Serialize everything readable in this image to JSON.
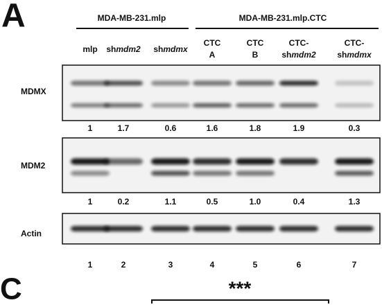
{
  "panel_label": "A",
  "groups": [
    {
      "label": "MDA-MB-231.mlp"
    },
    {
      "label": "MDA-MB-231.mlp.CTC"
    }
  ],
  "lanes": [
    [
      [
        {
          "text": "mlp"
        }
      ]
    ],
    [
      [
        {
          "text": "sh"
        },
        {
          "text": "mdm2",
          "style": "italic"
        }
      ]
    ],
    [
      [
        {
          "text": "sh"
        },
        {
          "text": "mdmx",
          "style": "italic"
        }
      ]
    ],
    [
      [
        {
          "text": "CTC"
        }
      ],
      [
        {
          "text": "A"
        }
      ]
    ],
    [
      [
        {
          "text": "CTC"
        }
      ],
      [
        {
          "text": "B"
        }
      ]
    ],
    [
      [
        {
          "text": "CTC-"
        }
      ],
      [
        {
          "text": "sh"
        },
        {
          "text": "mdm2",
          "style": "italic"
        }
      ]
    ],
    [
      [
        {
          "text": "CTC-"
        }
      ],
      [
        {
          "text": "sh"
        },
        {
          "text": "mdmx",
          "style": "italic"
        }
      ]
    ]
  ],
  "blots": [
    {
      "label": "MDMX",
      "quantification": [
        "1",
        "1.7",
        "0.6",
        "1.6",
        "1.8",
        "1.9",
        "0.3"
      ]
    },
    {
      "label": "MDM2",
      "quantification": [
        "1",
        "0.2",
        "1.1",
        "0.5",
        "1.0",
        "0.4",
        "1.3"
      ]
    },
    {
      "label": "Actin",
      "quantification": [
        "1",
        "2",
        "3",
        "4",
        "5",
        "6",
        "7"
      ]
    }
  ],
  "next_panel": {
    "label": "C",
    "significance": "***"
  }
}
